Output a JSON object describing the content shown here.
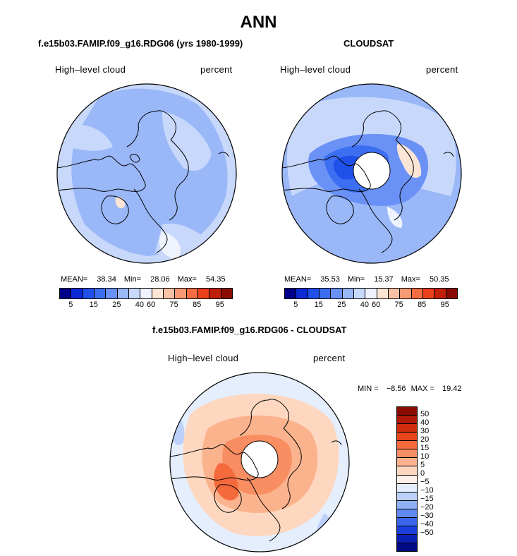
{
  "title": "ANN",
  "panel_left": {
    "title": "f.e15b03.FAMIP.f09_g16.RDG06 (yrs 1980-1999)",
    "variable_label": "High–level cloud",
    "units_label": "percent",
    "mean_label": "MEAN=",
    "mean_value": "38.34",
    "min_label": "Min=",
    "min_value": "28.06",
    "max_label": "Max=",
    "max_value": "54.35"
  },
  "panel_right": {
    "title": "CLOUDSAT",
    "variable_label": "High–level cloud",
    "units_label": "percent",
    "mean_label": "MEAN=",
    "mean_value": "35.53",
    "min_label": "Min=",
    "min_value": "15.37",
    "max_label": "Max=",
    "max_value": "50.35"
  },
  "panel_diff": {
    "title": "f.e15b03.FAMIP.f09_g16.RDG06 - CLOUDSAT",
    "variable_label": "High–level cloud",
    "units_label": "percent",
    "min_label": "MIN =",
    "min_value": "−8.56",
    "max_label": "MAX =",
    "max_value": "19.42"
  },
  "colorbar_abs": {
    "colors": [
      "#00008a",
      "#0a2bd4",
      "#1f50ea",
      "#3c6ef2",
      "#6a91f5",
      "#9ab7f8",
      "#c7d8fb",
      "#eef3fd",
      "#fde5d6",
      "#fbc2a5",
      "#f89a73",
      "#f56d42",
      "#e8411b",
      "#c0200a",
      "#8a0b02"
    ],
    "tick_labels": [
      "5",
      "15",
      "25",
      "40",
      "60",
      "75",
      "85",
      "95"
    ]
  },
  "colorbar_diff": {
    "colors": [
      "#8a0b02",
      "#b2190a",
      "#d02d0f",
      "#e8461d",
      "#f56a3c",
      "#f88e62",
      "#fbb38e",
      "#fdd7bf",
      "#fdf0e8",
      "#e4eefd",
      "#bcd1fa",
      "#8fb0f6",
      "#6189f2",
      "#3b64ec",
      "#1b3fdc",
      "#0b1fb4",
      "#020a84"
    ],
    "labels": [
      "50",
      "40",
      "30",
      "20",
      "15",
      "10",
      "5",
      "0",
      "−5",
      "−10",
      "−15",
      "−20",
      "−30",
      "−40",
      "−50"
    ]
  }
}
